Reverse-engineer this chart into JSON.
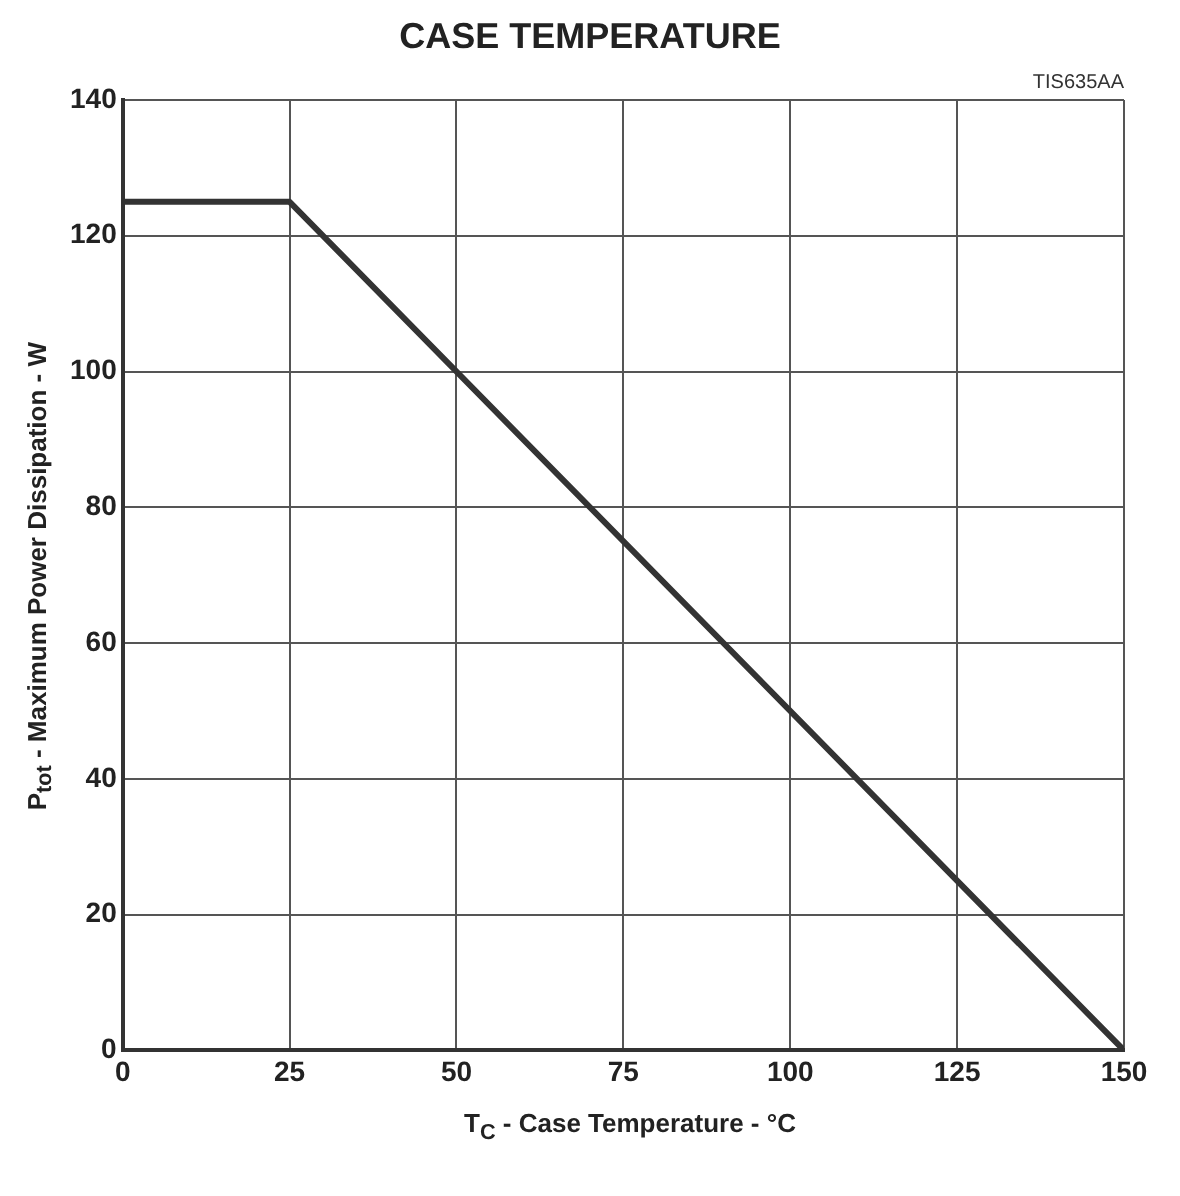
{
  "chart_data": {
    "type": "line",
    "title": "CASE TEMPERATURE",
    "xlabel": "T$_{C}$ - Case Temperature - °C",
    "ylabel": "P$_{tot}$ - Maximum Power Dissipation - W",
    "annotations": [
      "TIS635AA"
    ],
    "x": [
      0,
      25,
      150
    ],
    "series": [
      {
        "color": "#333333",
        "values": [
          125,
          125,
          0
        ]
      }
    ],
    "xlim": [
      0,
      150
    ],
    "xticks": [
      0,
      25,
      50,
      75,
      100,
      125,
      150
    ],
    "ylim": [
      0,
      140
    ],
    "yticks": [
      0,
      20,
      40,
      60,
      80,
      100,
      120,
      140
    ],
    "grid": true,
    "legend": false,
    "marker": "none",
    "line_style": "solid"
  }
}
